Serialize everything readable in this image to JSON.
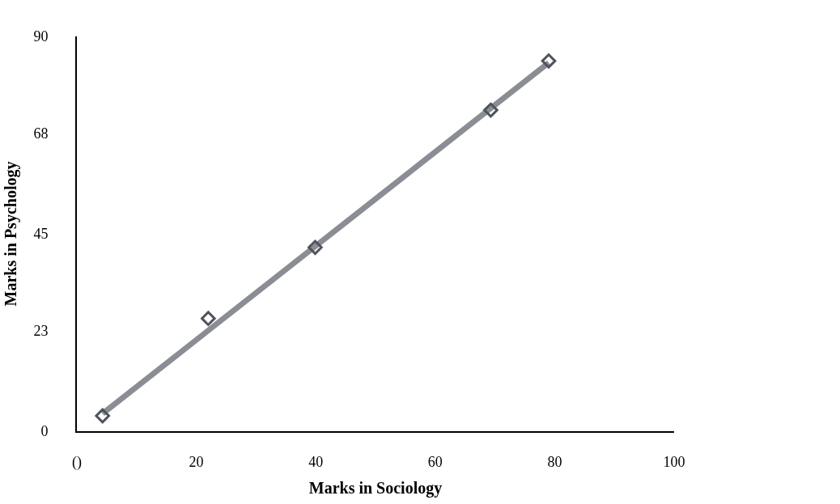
{
  "chart_data": {
    "type": "scatter",
    "xlabel": "Marks in Sociology",
    "ylabel": "Marks in Psychology",
    "x": [
      4.3,
      22,
      39.9,
      69.3,
      79
    ],
    "series": [
      {
        "type": "line",
        "marker": "none",
        "color": "#8a8d93",
        "x": [
          4.3,
          79
        ],
        "values": [
          4,
          84
        ]
      },
      {
        "color": "#4f535b",
        "values": [
          3.5,
          25.7,
          41.9,
          73.2,
          84.4
        ]
      }
    ],
    "marker": "diamond",
    "line_style": "solid",
    "xlim": [
      0,
      100
    ],
    "xticks": [
      {
        "value": 0,
        "label": "()"
      },
      20,
      40,
      60,
      80,
      100
    ],
    "ylim": [
      0,
      90
    ],
    "yticks": [
      0,
      23,
      45,
      68,
      90
    ]
  }
}
